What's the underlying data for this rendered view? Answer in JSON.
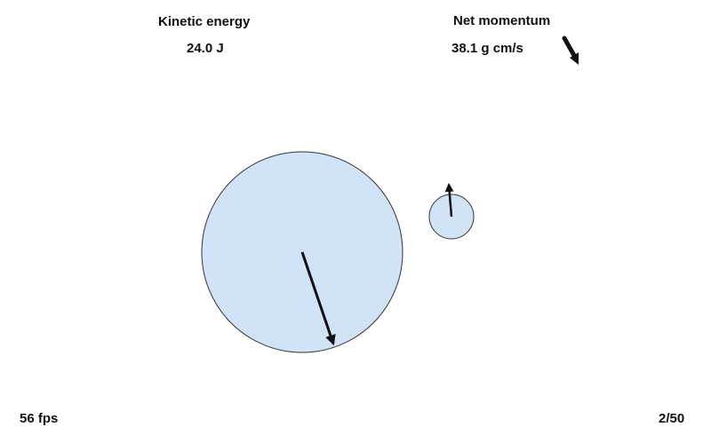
{
  "hud": {
    "kinetic_energy_label": "Kinetic energy",
    "kinetic_energy_value": "24.0 J",
    "net_momentum_label": "Net momentum",
    "net_momentum_value": "38.1 g cm/s",
    "fps": "56 fps",
    "frame_counter": "2/50"
  },
  "colors": {
    "ball_fill": "#d3e3f7",
    "ball_stroke": "#333333",
    "arrow": "#111111"
  },
  "icons": {
    "momentum_direction": "momentum-arrow-icon",
    "velocity_vector": "velocity-arrow-icon"
  }
}
